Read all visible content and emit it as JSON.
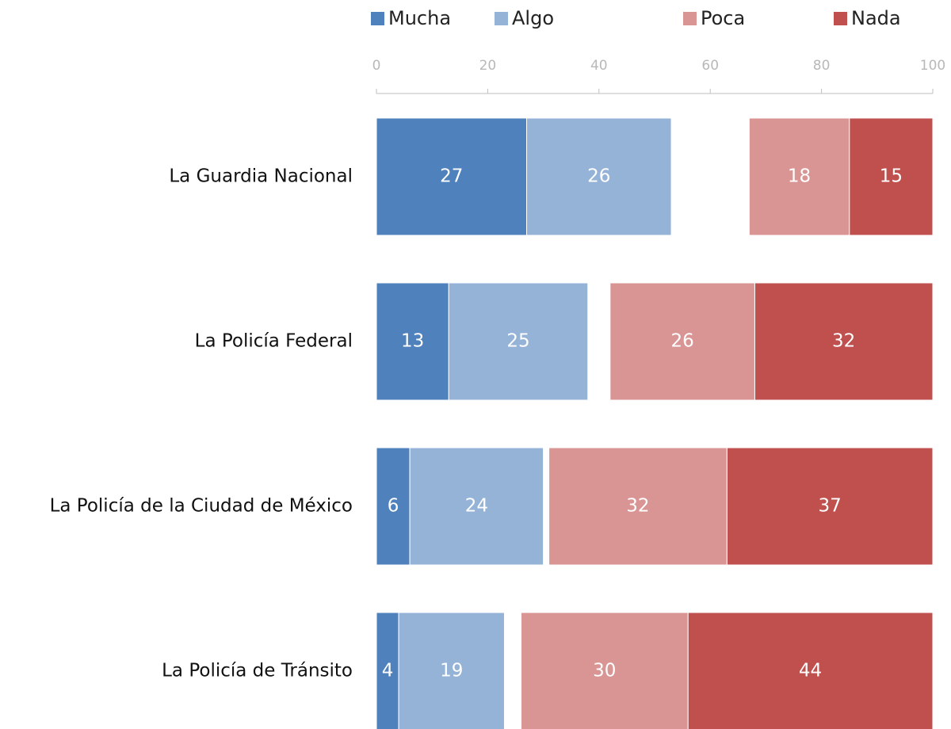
{
  "chart_data": {
    "type": "bar",
    "orientation": "horizontal",
    "stacked": true,
    "categories": [
      "La Guardia Nacional",
      "La Policía Federal",
      "La Policía de la Ciudad de México",
      "La Policía de Tránsito"
    ],
    "series": [
      {
        "name": "Mucha",
        "color": "#4f81bd",
        "values": [
          27,
          13,
          6,
          4
        ]
      },
      {
        "name": "Algo",
        "color": "#95b3d7",
        "values": [
          26,
          25,
          24,
          19
        ]
      },
      {
        "name": "Poca",
        "color": "#d99594",
        "values": [
          18,
          26,
          32,
          30
        ]
      },
      {
        "name": "Nada",
        "color": "#c0504d",
        "values": [
          15,
          32,
          37,
          44
        ]
      }
    ],
    "xlim": [
      0,
      100
    ],
    "xticks": [
      0,
      20,
      40,
      60,
      80,
      100
    ],
    "legend": "top"
  }
}
